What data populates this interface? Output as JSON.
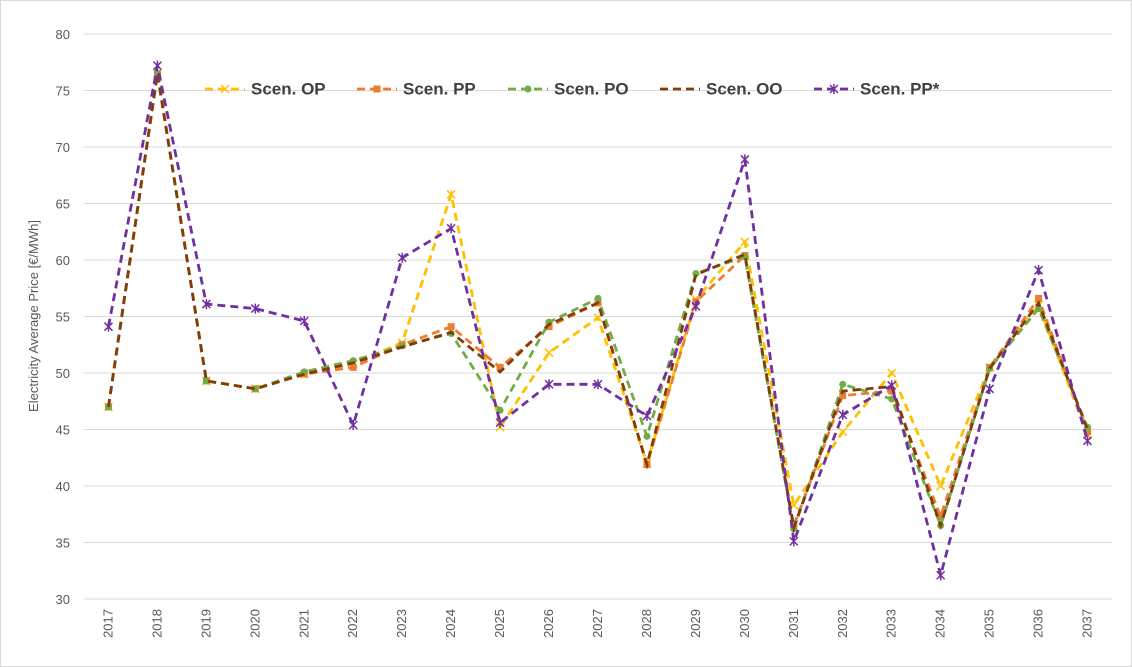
{
  "chart_data": {
    "type": "line",
    "y_label": "Electricity Average Price [€/MWh]",
    "categories": [
      "2017",
      "2018",
      "2019",
      "2020",
      "2021",
      "2022",
      "2023",
      "2024",
      "2025",
      "2026",
      "2027",
      "2028",
      "2029",
      "2030",
      "2031",
      "2032",
      "2033",
      "2034",
      "2035",
      "2036",
      "2037"
    ],
    "ylim": [
      30,
      80
    ],
    "yticks": [
      30,
      35,
      40,
      45,
      50,
      55,
      60,
      65,
      70,
      75,
      80
    ],
    "grid": true,
    "legend": "top",
    "series": [
      {
        "name": "Scen. OP",
        "color": "#ffc000",
        "marker": "x",
        "dash": "dashed",
        "values": [
          47,
          76.5,
          49.3,
          48.6,
          49.9,
          50.8,
          52.7,
          65.8,
          45.2,
          51.8,
          54.9,
          42,
          56.5,
          61.6,
          38.3,
          44.8,
          50,
          40,
          50.5,
          56,
          44.5
        ]
      },
      {
        "name": "Scen. PP",
        "color": "#ed7d31",
        "marker": "square",
        "dash": "dashed",
        "values": [
          47,
          76.5,
          49.3,
          48.6,
          49.9,
          50.5,
          52.5,
          54.1,
          50.5,
          54.1,
          56.2,
          41.9,
          56.3,
          60.4,
          36.5,
          48,
          48.4,
          37.3,
          50.5,
          56.6,
          44.8
        ]
      },
      {
        "name": "Scen. PO",
        "color": "#70ad47",
        "marker": "circle",
        "dash": "dashed",
        "values": [
          47,
          76.5,
          49.3,
          48.6,
          50.1,
          51.1,
          52.4,
          53.5,
          46.7,
          54.5,
          56.6,
          44.4,
          58.8,
          60.3,
          36.2,
          49,
          47.7,
          36.5,
          50.4,
          55.7,
          45.2
        ]
      },
      {
        "name": "Scen. OO",
        "color": "#843c0c",
        "marker": "none",
        "dash": "dashed",
        "values": [
          47,
          76.5,
          49.3,
          48.6,
          49.9,
          50.9,
          52.3,
          53.6,
          50.1,
          54.3,
          56.2,
          41.9,
          58.7,
          60.5,
          36.3,
          48.4,
          48.8,
          36.5,
          50.4,
          56.2,
          45
        ]
      },
      {
        "name": "Scen. PP*",
        "color": "#7030a0",
        "marker": "star",
        "dash": "dashed",
        "values": [
          54.1,
          77.2,
          56.1,
          55.7,
          54.6,
          45.4,
          60.2,
          62.8,
          45.6,
          49,
          49,
          46.2,
          55.9,
          68.9,
          35.1,
          46.3,
          48.9,
          32.1,
          48.6,
          59.1,
          44
        ]
      }
    ]
  }
}
